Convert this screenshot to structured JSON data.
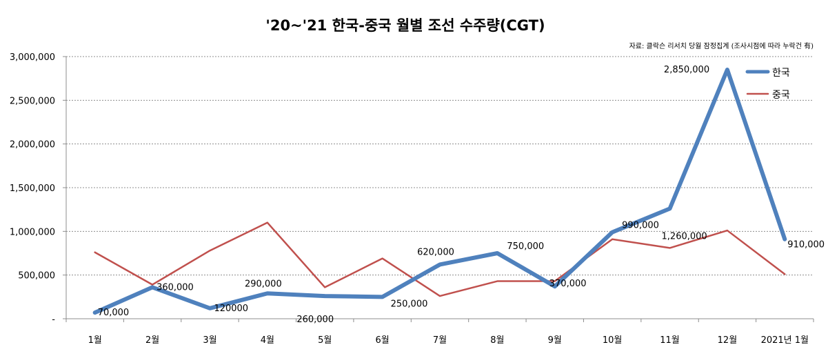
{
  "chart_data": {
    "type": "line",
    "title": "'20~'21 한국-중국 월별 조선 수주량(CGT)",
    "source_note": "자료: 클락슨 리서치 당월 잠정집계 (조사시점에 따라 누락건 有)",
    "categories": [
      "1월",
      "2월",
      "3월",
      "4월",
      "5월",
      "6월",
      "7월",
      "8월",
      "9월",
      "10월",
      "11월",
      "12월",
      "2021년 1월"
    ],
    "ylim": [
      0,
      3000000
    ],
    "y_ticks": [
      0,
      500000,
      1000000,
      1500000,
      2000000,
      2500000,
      3000000
    ],
    "y_tick_labels": [
      "-",
      "500,000",
      "1,000,000",
      "1,500,000",
      "2,000,000",
      "2,500,000",
      "3,000,000"
    ],
    "grid": true,
    "legend_position": "top-right",
    "series": [
      {
        "name": "한국",
        "color": "#4F81BD",
        "values": [
          70000,
          360000,
          120000,
          290000,
          260000,
          250000,
          620000,
          750000,
          370000,
          990000,
          1260000,
          2850000,
          910000
        ],
        "data_labels": [
          "70,000",
          "360,000",
          "120000",
          "290,000",
          "260,000",
          "250,000",
          "620,000",
          "750,000",
          "370,000",
          "990,000",
          "1,260,000",
          "2,850,000",
          "910,000"
        ]
      },
      {
        "name": "중국",
        "color": "#C0504D",
        "values": [
          760000,
          390000,
          780000,
          1100000,
          360000,
          690000,
          260000,
          430000,
          430000,
          910000,
          810000,
          1010000,
          510000
        ]
      }
    ]
  }
}
